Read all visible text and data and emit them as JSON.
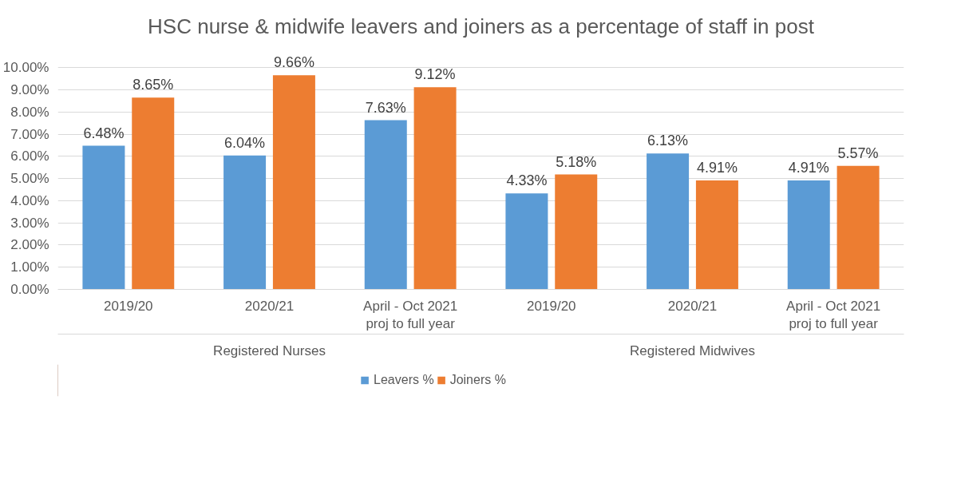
{
  "chart_data": {
    "type": "bar",
    "title": "HSC nurse & midwife leavers and joiners as a percentage of staff in post",
    "categories": [
      "2019/20",
      "2020/21",
      "April - Oct 2021\nproj to full year",
      "2019/20",
      "2020/21",
      "April - Oct 2021\nproj to full year"
    ],
    "series": [
      {
        "name": "Leavers %",
        "color": "#5b9bd5",
        "values": [
          6.48,
          6.04,
          7.63,
          4.33,
          6.13,
          4.91
        ],
        "value_labels": [
          "6.48%",
          "6.04%",
          "7.63%",
          "4.33%",
          "6.13%",
          "4.91%"
        ]
      },
      {
        "name": "Joiners %",
        "color": "#ed7d31",
        "values": [
          8.65,
          9.66,
          9.12,
          5.18,
          4.91,
          5.57
        ],
        "value_labels": [
          "8.65%",
          "9.66%",
          "9.12%",
          "5.18%",
          "4.91%",
          "5.57%"
        ]
      }
    ],
    "annotations": [
      "Registered Nurses",
      "Registered Midwives"
    ],
    "ylim": [
      0,
      10
    ],
    "yticks": [
      {
        "value": 0,
        "label": "0.00%"
      },
      {
        "value": 1,
        "label": "1.00%"
      },
      {
        "value": 2,
        "label": "2.00%"
      },
      {
        "value": 3,
        "label": "3.00%"
      },
      {
        "value": 4,
        "label": "4.00%"
      },
      {
        "value": 5,
        "label": "5.00%"
      },
      {
        "value": 6,
        "label": "6.00%"
      },
      {
        "value": 7,
        "label": "7.00%"
      },
      {
        "value": 8,
        "label": "8.00%"
      },
      {
        "value": 9,
        "label": "9.00%"
      },
      {
        "value": 10,
        "label": "10.00%"
      }
    ],
    "grid": "y",
    "legend": "bottom"
  }
}
